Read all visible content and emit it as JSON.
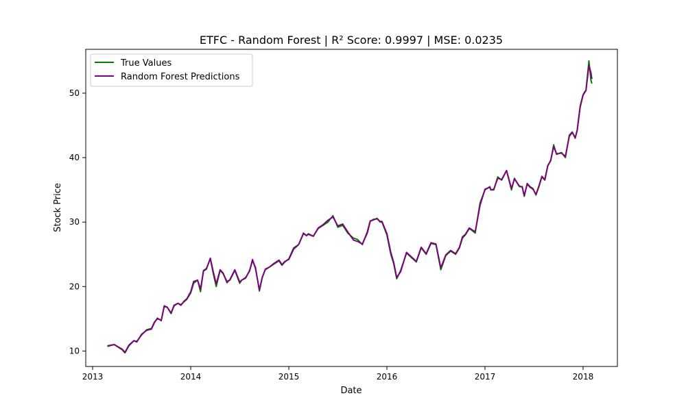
{
  "chart_data": {
    "type": "line",
    "title": "ETFC - Random Forest | R² Score: 0.9997 | MSE: 0.0235",
    "xlabel": "Date",
    "ylabel": "Stock Price",
    "xlim": [
      2012.93,
      2018.35
    ],
    "ylim": [
      7.6,
      56.8
    ],
    "xticks": [
      2013,
      2014,
      2015,
      2016,
      2017,
      2018
    ],
    "yticks": [
      10,
      20,
      30,
      40,
      50
    ],
    "grid": false,
    "legend_position": "top-left",
    "x": [
      2013.15,
      2013.22,
      2013.3,
      2013.33,
      2013.37,
      2013.42,
      2013.45,
      2013.5,
      2013.55,
      2013.6,
      2013.63,
      2013.66,
      2013.7,
      2013.73,
      2013.76,
      2013.8,
      2013.83,
      2013.87,
      2013.9,
      2013.93,
      2013.96,
      2014.0,
      2014.03,
      2014.07,
      2014.1,
      2014.13,
      2014.16,
      2014.2,
      2014.23,
      2014.26,
      2014.3,
      2014.33,
      2014.37,
      2014.4,
      2014.45,
      2014.5,
      2014.52,
      2014.56,
      2014.6,
      2014.63,
      2014.66,
      2014.7,
      2014.73,
      2014.76,
      2014.8,
      2014.85,
      2014.9,
      2014.93,
      2014.96,
      2015.0,
      2015.05,
      2015.1,
      2015.15,
      2015.18,
      2015.2,
      2015.25,
      2015.3,
      2015.35,
      2015.4,
      2015.45,
      2015.5,
      2015.55,
      2015.6,
      2015.66,
      2015.7,
      2015.75,
      2015.8,
      2015.83,
      2015.86,
      2015.9,
      2015.93,
      2015.95,
      2016.0,
      2016.04,
      2016.07,
      2016.1,
      2016.14,
      2016.2,
      2016.25,
      2016.3,
      2016.35,
      2016.4,
      2016.45,
      2016.5,
      2016.55,
      2016.6,
      2016.65,
      2016.7,
      2016.74,
      2016.77,
      2016.8,
      2016.84,
      2016.86,
      2016.9,
      2016.95,
      2017.0,
      2017.05,
      2017.06,
      2017.09,
      2017.13,
      2017.17,
      2017.22,
      2017.27,
      2017.3,
      2017.35,
      2017.38,
      2017.4,
      2017.43,
      2017.46,
      2017.49,
      2017.52,
      2017.55,
      2017.58,
      2017.61,
      2017.64,
      2017.67,
      2017.7,
      2017.73,
      2017.78,
      2017.82,
      2017.86,
      2017.89,
      2017.92,
      2017.94,
      2017.97,
      2018.0,
      2018.03,
      2018.06,
      2018.08,
      2018.09
    ],
    "series": [
      {
        "name": "True Values",
        "color": "#008000",
        "values": [
          10.7,
          11.0,
          10.2,
          9.7,
          10.8,
          11.6,
          11.5,
          12.5,
          13.3,
          13.5,
          14.5,
          15.0,
          14.8,
          16.9,
          16.8,
          15.8,
          17.0,
          17.4,
          17.2,
          17.6,
          18.0,
          19.0,
          20.5,
          21.0,
          19.2,
          22.5,
          22.8,
          24.3,
          22.0,
          20.0,
          22.5,
          22.0,
          20.8,
          21.0,
          22.5,
          20.5,
          21.0,
          21.3,
          22.5,
          24.0,
          23.0,
          19.3,
          21.5,
          22.6,
          23.0,
          23.5,
          24.0,
          23.3,
          23.8,
          24.3,
          26.0,
          26.5,
          28.2,
          27.9,
          28.2,
          27.8,
          29.0,
          29.5,
          30.0,
          31.0,
          29.2,
          29.5,
          28.3,
          27.5,
          27.3,
          26.5,
          28.5,
          30.2,
          30.3,
          30.6,
          30.0,
          30.0,
          28.0,
          25.0,
          23.5,
          21.2,
          22.5,
          25.2,
          24.5,
          23.8,
          26.0,
          25.0,
          26.7,
          26.5,
          22.6,
          24.8,
          25.5,
          25.0,
          26.0,
          27.5,
          28.0,
          29.0,
          28.8,
          28.3,
          33.0,
          35.0,
          35.5,
          35.0,
          35.0,
          37.0,
          36.5,
          38.0,
          35.0,
          36.8,
          35.5,
          35.5,
          34.0,
          36.0,
          35.5,
          35.2,
          34.2,
          35.5,
          37.0,
          36.5,
          38.8,
          39.5,
          42.0,
          40.5,
          40.8,
          40.0,
          43.5,
          44.0,
          43.0,
          44.3,
          48.0,
          49.8,
          50.5,
          55.0,
          52.0,
          51.5
        ]
      },
      {
        "name": "Random Forest Predictions",
        "color": "#800080",
        "values": [
          10.8,
          11.0,
          10.3,
          9.8,
          10.9,
          11.6,
          11.4,
          12.6,
          13.2,
          13.4,
          14.4,
          15.1,
          14.7,
          17.0,
          16.8,
          15.9,
          17.1,
          17.4,
          17.1,
          17.7,
          18.1,
          19.2,
          20.8,
          21.0,
          19.6,
          22.4,
          22.7,
          24.4,
          22.3,
          20.4,
          22.6,
          22.1,
          20.6,
          21.1,
          22.6,
          20.7,
          21.0,
          21.4,
          22.4,
          24.2,
          22.8,
          19.5,
          21.4,
          22.7,
          23.0,
          23.6,
          24.1,
          23.4,
          23.9,
          24.2,
          25.8,
          26.5,
          28.3,
          27.9,
          28.1,
          27.8,
          29.1,
          29.6,
          30.3,
          30.8,
          29.4,
          29.7,
          28.5,
          27.2,
          27.0,
          26.6,
          28.3,
          30.1,
          30.4,
          30.5,
          30.1,
          30.1,
          28.2,
          25.3,
          23.7,
          21.4,
          22.3,
          25.3,
          24.6,
          23.9,
          26.1,
          25.1,
          26.8,
          26.6,
          22.9,
          24.9,
          25.6,
          25.1,
          26.1,
          27.7,
          28.1,
          29.1,
          28.9,
          28.5,
          32.6,
          35.1,
          35.4,
          35.0,
          35.1,
          36.8,
          36.6,
          38.0,
          35.2,
          36.7,
          35.6,
          35.4,
          34.1,
          35.9,
          35.4,
          35.1,
          34.3,
          35.6,
          37.1,
          36.6,
          38.7,
          39.6,
          41.7,
          40.6,
          40.7,
          40.2,
          43.3,
          43.9,
          43.1,
          44.2,
          47.8,
          49.7,
          50.4,
          54.3,
          53.2,
          52.2
        ]
      }
    ]
  }
}
